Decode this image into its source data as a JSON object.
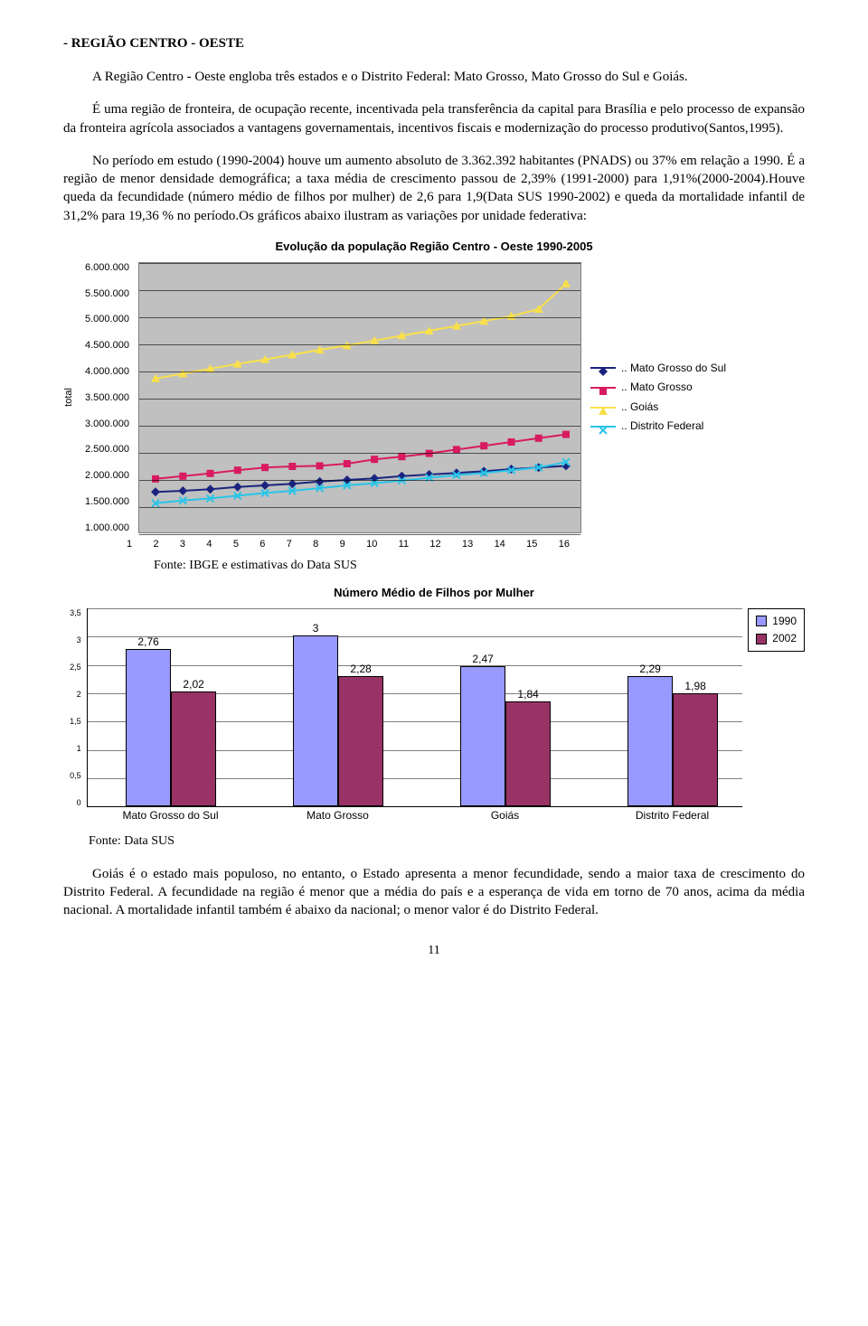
{
  "heading": "- REGIÃO CENTRO - OESTE",
  "para1": "A Região Centro - Oeste engloba três estados e o Distrito Federal: Mato Grosso, Mato Grosso do Sul e Goiás.",
  "para2": "É uma região de fronteira, de ocupação recente, incentivada pela transferência da capital para Brasília e pelo processo de expansão da fronteira agrícola associados a vantagens governamentais, incentivos fiscais e modernização do processo produtivo(Santos,1995).",
  "para3": "No período em estudo (1990-2004) houve um aumento absoluto de 3.362.392 habitantes (PNADS) ou 37% em relação a 1990. É a região de menor densidade demográfica; a taxa média de crescimento passou de 2,39% (1991-2000) para 1,91%(2000-2004).Houve queda da fecundidade (número médio de filhos por mulher) de 2,6 para 1,9(Data SUS 1990-2002) e queda da mortalidade infantil de 31,2% para 19,36 % no período.Os gráficos abaixo ilustram as variações por unidade federativa:",
  "chart1": {
    "title": "Evolução da população Região Centro - Oeste 1990-2005",
    "ylabel": "total",
    "ymin": 1000000,
    "ymax": 6000000,
    "ystep": 500000,
    "yticks": [
      "6.000.000",
      "5.500.000",
      "5.000.000",
      "4.500.000",
      "4.000.000",
      "3.500.000",
      "3.000.000",
      "2.500.000",
      "2.000.000",
      "1.500.000",
      "1.000.000"
    ],
    "xticks": [
      "1",
      "2",
      "3",
      "4",
      "5",
      "6",
      "7",
      "8",
      "9",
      "10",
      "11",
      "12",
      "13",
      "14",
      "15",
      "16"
    ],
    "bg": "#c0c0c0",
    "grid_color": "#000000",
    "series": [
      {
        "name": ".. Mato Grosso do Sul",
        "color": "#1a237e",
        "marker": "diamond",
        "values": [
          1780000,
          1800000,
          1830000,
          1870000,
          1900000,
          1930000,
          1970000,
          2000000,
          2030000,
          2070000,
          2100000,
          2130000,
          2160000,
          2200000,
          2230000,
          2260000
        ]
      },
      {
        "name": ".. Mato Grosso",
        "color": "#d81b60",
        "marker": "square",
        "values": [
          2020000,
          2070000,
          2120000,
          2180000,
          2230000,
          2250000,
          2260000,
          2300000,
          2380000,
          2430000,
          2490000,
          2560000,
          2630000,
          2700000,
          2770000,
          2840000
        ]
      },
      {
        "name": ".. Goiás",
        "color": "#f9e04a",
        "marker": "triangle",
        "values": [
          3870000,
          3960000,
          4050000,
          4140000,
          4220000,
          4310000,
          4400000,
          4480000,
          4570000,
          4660000,
          4750000,
          4840000,
          4930000,
          5020000,
          5150000,
          5620000
        ]
      },
      {
        "name": ".. Distrito Federal",
        "color": "#29c5e8",
        "marker": "x",
        "values": [
          1570000,
          1620000,
          1660000,
          1710000,
          1760000,
          1800000,
          1850000,
          1900000,
          1940000,
          1990000,
          2040000,
          2090000,
          2130000,
          2180000,
          2230000,
          2330000
        ]
      }
    ],
    "caption": "Fonte: IBGE e estimativas do Data SUS"
  },
  "chart2": {
    "title": "Número Médio de Filhos por Mulher",
    "ymin": 0,
    "ymax": 3.5,
    "ystep": 0.5,
    "yticks": [
      "3,5",
      "3",
      "2,5",
      "2",
      "1,5",
      "1",
      "0,5",
      "0"
    ],
    "categories": [
      "Mato Grosso do Sul",
      "Mato Grosso",
      "Goiás",
      "Distrito Federal"
    ],
    "groups": [
      {
        "label": "Mato Grosso do Sul",
        "v1": 2.76,
        "v2": 2.02,
        "d1": "2,76",
        "d2": "2,02"
      },
      {
        "label": "Mato Grosso",
        "v1": 3.0,
        "v2": 2.28,
        "d1": "3",
        "d2": "2,28"
      },
      {
        "label": "Goiás",
        "v1": 2.47,
        "v2": 1.84,
        "d1": "2,47",
        "d2": "1,84"
      },
      {
        "label": "Distrito Federal",
        "v1": 2.29,
        "v2": 1.98,
        "d1": "2,29",
        "d2": "1,98"
      }
    ],
    "color1": "#9999ff",
    "color2": "#993366",
    "legend": [
      "1990",
      "2002"
    ],
    "caption": "Fonte: Data SUS"
  },
  "para4": "Goiás é o estado mais populoso, no entanto, o Estado apresenta a menor fecundidade, sendo a maior taxa de crescimento do Distrito Federal. A fecundidade na região é menor que a média do país e a esperança de vida em torno de 70 anos, acima da média nacional. A mortalidade infantil também é abaixo da nacional; o menor valor é do Distrito Federal.",
  "page_num": "11"
}
